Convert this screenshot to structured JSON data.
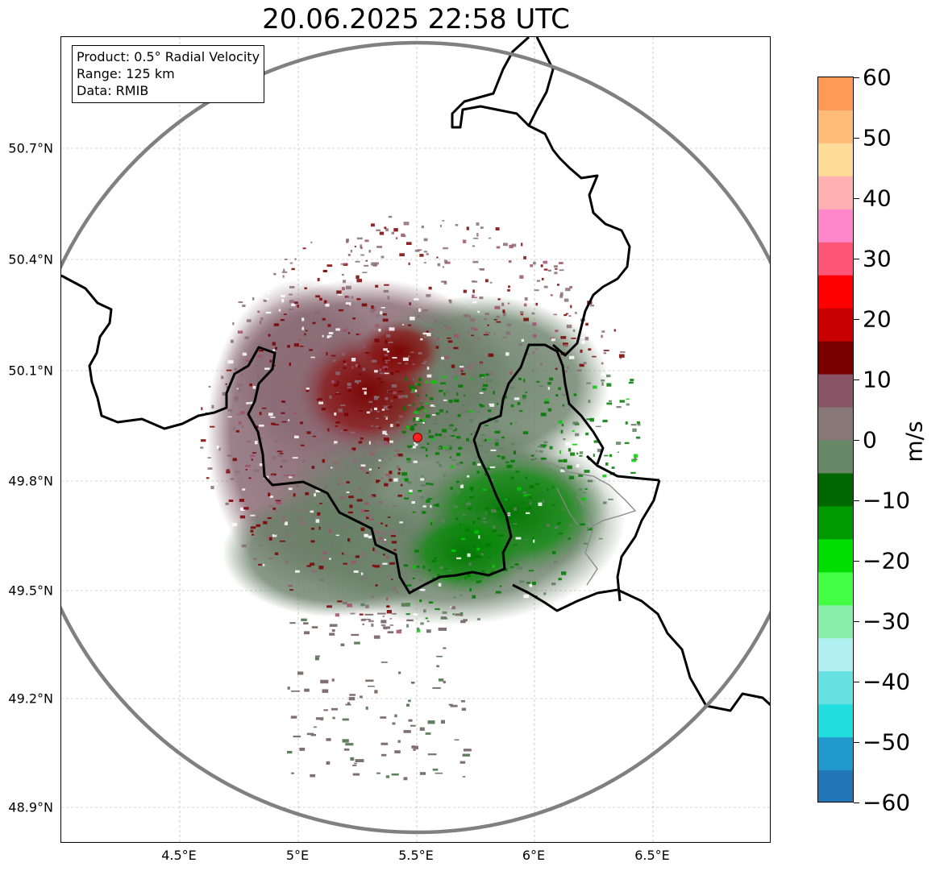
{
  "map": {
    "title": "20.06.2025 22:58 UTC",
    "info": {
      "product": "Product: 0.5° Radial Velocity",
      "range": "Range: 125 km",
      "source": "Data: RMIB"
    },
    "lat_labels": [
      "50.7°N",
      "50.4°N",
      "50.1°N",
      "49.8°N",
      "49.5°N",
      "49.2°N",
      "48.9°N"
    ],
    "lon_labels": [
      "4.5°E",
      "5°E",
      "5.5°E",
      "6°E",
      "6.5°E"
    ],
    "radar_site": "red-dot",
    "colors": {
      "range_ring": "#808080",
      "borders": "#000000",
      "receding": "#7a0000",
      "approaching": "#007a00",
      "neutral": "#8a7070"
    }
  },
  "colorbar": {
    "unit": "m/s",
    "min": -60,
    "max": 60,
    "tick_labels": [
      "60",
      "50",
      "40",
      "30",
      "20",
      "10",
      "0",
      "−10",
      "−20",
      "−30",
      "−40",
      "−50",
      "−60"
    ],
    "stops": [
      "#ff9955",
      "#ffbb77",
      "#ffdd99",
      "#ffb0b0",
      "#ff88cc",
      "#ff5577",
      "#ff0000",
      "#c80000",
      "#7a0000",
      "#885566",
      "#887777",
      "#668866",
      "#006600",
      "#009900",
      "#00dd00",
      "#44ff44",
      "#88eeaa",
      "#b0f0f0",
      "#66e0e0",
      "#22dddd",
      "#2299cc",
      "#2277bb"
    ]
  }
}
